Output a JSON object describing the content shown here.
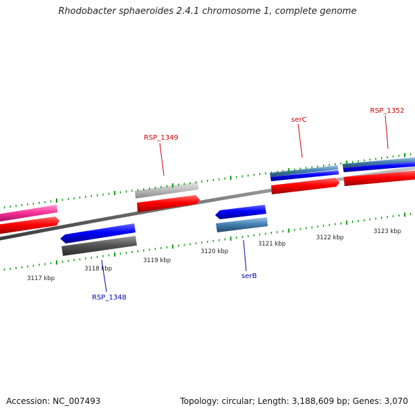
{
  "title": "Rhodobacter sphaeroides 2.4.1 chromosome 1, complete genome",
  "footer": {
    "accession": "Accession: NC_007493",
    "topology": "Topology: circular; Length: 3,188,609 bp; Genes: 3,070"
  },
  "ticks": [
    {
      "label": "3117 kbp"
    },
    {
      "label": "3118 kbp"
    },
    {
      "label": "3119 kbp"
    },
    {
      "label": "3120 kbp"
    },
    {
      "label": "3121 kbp"
    },
    {
      "label": "3122 kbp"
    },
    {
      "label": "3123 kbp"
    }
  ],
  "gene_labels": [
    {
      "name": "RSP_1349",
      "color": "#cc0000"
    },
    {
      "name": "serC",
      "color": "#cc0000"
    },
    {
      "name": "RSP_1352",
      "color": "#cc0000"
    },
    {
      "name": "RSP_1348",
      "color": "#0000aa"
    },
    {
      "name": "serB",
      "color": "#0000aa"
    }
  ],
  "colors": {
    "forward_cds": "#ff0000",
    "reverse_cds": "#0000ff",
    "pink_feature": "#ff3399",
    "gray_feature": "#c0c0c0",
    "dark_gray_feature": "#555555",
    "steel_blue_feature": "#4682b4",
    "backbone": "#808080",
    "tick_green": "#009900"
  }
}
